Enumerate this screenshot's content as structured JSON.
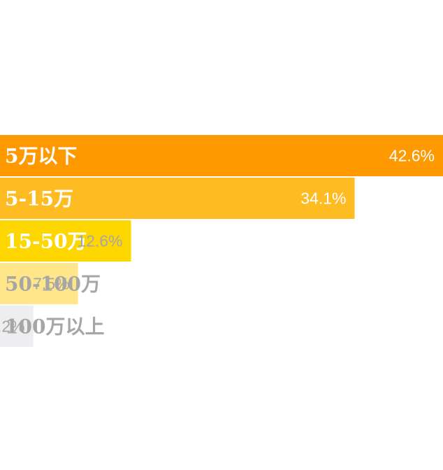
{
  "chart_data": {
    "type": "bar",
    "orientation": "horizontal",
    "title": "",
    "xlabel": "",
    "ylabel": "",
    "xlim": [
      0,
      42.6
    ],
    "grid": false,
    "legend": "none",
    "categories": [
      "5万以下",
      "5-15万",
      "15-50万",
      "50-100万",
      "100万以上"
    ],
    "values": [
      42.6,
      34.1,
      12.6,
      7.5,
      3.2
    ],
    "value_labels": [
      "42.6%",
      "34.1%",
      "12.6%",
      "7.5%",
      "3.2%"
    ],
    "bar_colors": [
      "#FF9900",
      "#FFBB22",
      "#FFD700",
      "#FFE68A",
      "#EEEEF0"
    ],
    "category_label_colors": [
      "#FFFFFF",
      "#FFFFFF",
      "#FFFFFF",
      "#A6A6A6",
      "#A6A6A6"
    ],
    "value_label_colors": [
      "#FFFFFF",
      "#FFFFFF",
      "#A6A6A6",
      "#A6A6A6",
      "#A6A6A6"
    ]
  }
}
